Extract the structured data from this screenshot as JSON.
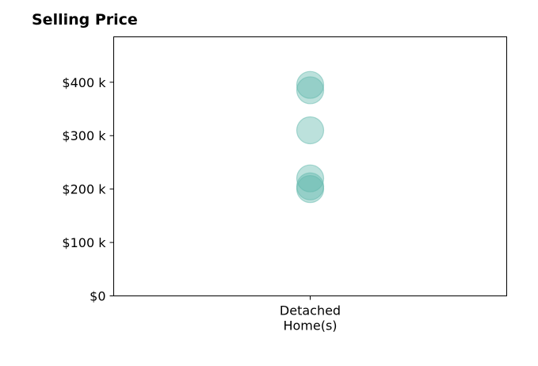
{
  "chart_data": {
    "type": "scatter",
    "title": "Selling Price",
    "categories": [
      "Detached\nHome(s)"
    ],
    "y_ticks": [
      "$0",
      "$100 k",
      "$200 k",
      "$300 k",
      "$400 k"
    ],
    "y_tick_values": [
      0,
      100000,
      200000,
      300000,
      400000
    ],
    "ylim": [
      0,
      485000
    ],
    "grid": false,
    "marker_color": "#5fb8ac",
    "series": [
      {
        "category": "Detached\nHome(s)",
        "values": [
          395000,
          385000,
          310000,
          220000,
          205000,
          200000
        ]
      }
    ]
  }
}
